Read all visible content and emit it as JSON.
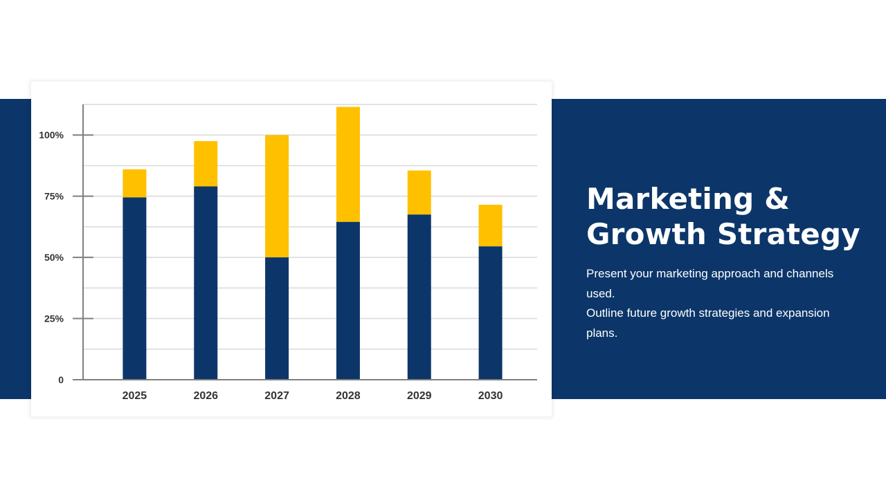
{
  "slide": {
    "title_line1": "Marketing &",
    "title_line2": "Growth Strategy",
    "desc_line1": "Present your marketing approach and channels used.",
    "desc_line2": "Outline future growth strategies and expansion plans."
  },
  "colors": {
    "band": "#0c3669",
    "series_base": "#0c3669",
    "series_top": "#ffc000",
    "grid": "#d9d9d9",
    "axis": "#7f7f7f",
    "text_dark": "#333333"
  },
  "chart_data": {
    "type": "bar",
    "stacked": true,
    "categories": [
      "2025",
      "2026",
      "2027",
      "2028",
      "2029",
      "2030"
    ],
    "series": [
      {
        "values": [
          74.5,
          79,
          50,
          64.5,
          67.5,
          54.5
        ]
      },
      {
        "values": [
          11.5,
          18.5,
          50,
          47,
          18,
          17
        ]
      }
    ],
    "ylim": [
      0,
      112.5
    ],
    "yticks": [
      {
        "value": 0,
        "label": "0"
      },
      {
        "value": 25,
        "label": "25%"
      },
      {
        "value": 50,
        "label": "50%"
      },
      {
        "value": 75,
        "label": "75%"
      },
      {
        "value": 100,
        "label": "100%"
      }
    ],
    "grid": true,
    "legend": "none"
  }
}
